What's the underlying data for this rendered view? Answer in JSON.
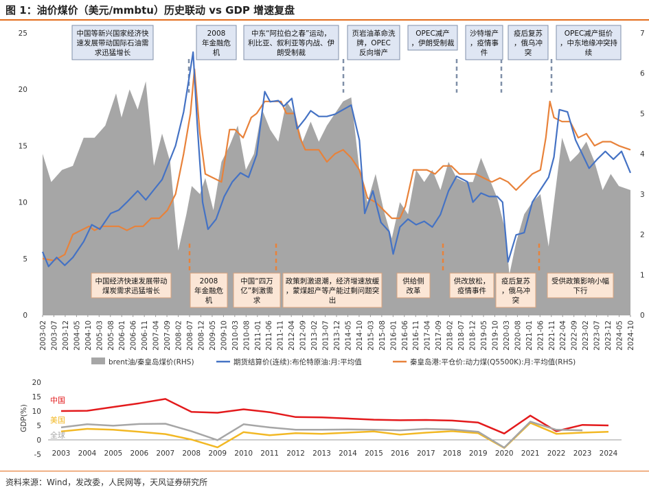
{
  "title": "图 1：油价煤价（美元/mmbtu）历史联动 vs GDP 增速复盘",
  "source": "资料来源：Wind，发改委，人民网等，天风证券研究所",
  "colors": {
    "area": "#a6a6a6",
    "oil": "#4472c4",
    "coal": "#e8823a",
    "china": "#e31a1c",
    "us": "#f2b824",
    "world": "#a6a6a6",
    "rule": "#e36c1b"
  },
  "chart_data": [
    {
      "type": "line",
      "left_axis": {
        "ylim": [
          0,
          25
        ],
        "ticks": [
          0,
          5,
          10,
          15,
          20,
          25
        ]
      },
      "right_axis": {
        "ylim": [
          0,
          7
        ],
        "ticks": [
          0,
          1,
          2,
          3,
          4,
          5,
          6,
          7
        ]
      },
      "x_range": [
        2003.08,
        2024.83
      ],
      "x_tick_labels": [
        "2003-02",
        "2003-07",
        "2003-12",
        "2004-05",
        "2004-10",
        "2005-03",
        "2005-08",
        "2006-01",
        "2006-06",
        "2006-11",
        "2007-04",
        "2007-09",
        "2008-02",
        "2008-07",
        "2008-12",
        "2009-05",
        "2009-10",
        "2010-03",
        "2010-08",
        "2011-01",
        "2011-06",
        "2011-11",
        "2012-04",
        "2012-09",
        "2013-02",
        "2013-07",
        "2013-12",
        "2014-05",
        "2014-10",
        "2015-03",
        "2015-08",
        "2016-01",
        "2016-06",
        "2016-11",
        "2017-04",
        "2017-09",
        "2018-02",
        "2018-07",
        "2018-12",
        "2019-05",
        "2019-10",
        "2020-03",
        "2020-08",
        "2021-01",
        "2021-06",
        "2021-11",
        "2022-04",
        "2022-09",
        "2023-02",
        "2023-07",
        "2023-12",
        "2024-05",
        "2024-10"
      ],
      "legend": [
        "brent油/秦皇岛煤价(RHS)",
        "期货结算价(连续):布伦特原油:月:平均值",
        "秦皇岛港:平仓价:动力煤(Q5500K):月:平均值(RHS)"
      ],
      "series": [
        {
          "name": "brent油/秦皇岛煤价(RHS)",
          "axis": "right",
          "style": "area",
          "x": [
            2003.08,
            2003.4,
            2003.8,
            2004.2,
            2004.6,
            2005.0,
            2005.4,
            2005.8,
            2006.0,
            2006.3,
            2006.6,
            2006.9,
            2007.2,
            2007.5,
            2007.8,
            2008.1,
            2008.4,
            2008.6,
            2008.9,
            2009.1,
            2009.4,
            2009.7,
            2010.0,
            2010.3,
            2010.6,
            2010.9,
            2011.2,
            2011.5,
            2011.8,
            2012.1,
            2012.4,
            2012.7,
            2013.0,
            2013.3,
            2013.6,
            2013.9,
            2014.2,
            2014.5,
            2014.8,
            2015.1,
            2015.4,
            2015.7,
            2016.0,
            2016.3,
            2016.6,
            2016.9,
            2017.2,
            2017.5,
            2017.8,
            2018.1,
            2018.4,
            2018.7,
            2019.0,
            2019.3,
            2019.6,
            2019.9,
            2020.2,
            2020.35,
            2020.6,
            2020.9,
            2021.2,
            2021.5,
            2021.8,
            2022.0,
            2022.3,
            2022.6,
            2022.9,
            2023.2,
            2023.5,
            2023.8,
            2024.1,
            2024.4,
            2024.83
          ],
          "y": [
            4.0,
            3.3,
            3.6,
            3.7,
            4.4,
            4.4,
            4.7,
            5.5,
            4.9,
            5.6,
            5.1,
            5.8,
            3.7,
            4.5,
            3.8,
            1.6,
            2.5,
            3.2,
            3.0,
            3.4,
            2.6,
            3.8,
            4.2,
            4.7,
            3.6,
            4.0,
            5.1,
            4.6,
            4.3,
            5.3,
            5.0,
            4.3,
            4.8,
            4.3,
            4.7,
            5.0,
            5.3,
            5.4,
            3.6,
            2.8,
            3.5,
            2.6,
            1.9,
            2.8,
            2.5,
            3.6,
            3.3,
            3.6,
            3.1,
            3.8,
            3.4,
            3.3,
            3.3,
            3.9,
            3.4,
            2.9,
            2.1,
            1.0,
            1.8,
            2.5,
            2.8,
            3.0,
            1.7,
            2.8,
            4.4,
            3.8,
            4.0,
            4.3,
            3.8,
            3.1,
            3.5,
            3.2,
            3.1
          ]
        },
        {
          "name": "期货结算价(连续):布伦特原油:月:平均值",
          "axis": "left",
          "style": "line",
          "x": [
            2003.08,
            2003.3,
            2003.6,
            2003.9,
            2004.2,
            2004.6,
            2004.9,
            2005.2,
            2005.6,
            2005.9,
            2006.2,
            2006.6,
            2006.9,
            2007.2,
            2007.5,
            2007.8,
            2008.0,
            2008.3,
            2008.5,
            2008.65,
            2008.8,
            2009.0,
            2009.2,
            2009.5,
            2009.8,
            2010.1,
            2010.4,
            2010.7,
            2011.0,
            2011.3,
            2011.5,
            2011.8,
            2012.0,
            2012.3,
            2012.5,
            2012.8,
            2013.0,
            2013.3,
            2013.6,
            2013.9,
            2014.2,
            2014.5,
            2014.8,
            2015.0,
            2015.3,
            2015.6,
            2015.9,
            2016.05,
            2016.3,
            2016.6,
            2016.9,
            2017.2,
            2017.5,
            2017.8,
            2018.1,
            2018.4,
            2018.8,
            2019.0,
            2019.3,
            2019.6,
            2019.9,
            2020.1,
            2020.3,
            2020.6,
            2020.9,
            2021.2,
            2021.5,
            2021.8,
            2022.0,
            2022.2,
            2022.5,
            2022.8,
            2023.0,
            2023.3,
            2023.6,
            2023.9,
            2024.2,
            2024.5,
            2024.83
          ],
          "y": [
            5.6,
            4.3,
            5.1,
            4.4,
            5.1,
            6.5,
            8.0,
            7.6,
            9.0,
            9.3,
            10.0,
            11.0,
            10.2,
            11.1,
            12.0,
            13.8,
            15.0,
            18.0,
            21.0,
            23.3,
            17.0,
            10.0,
            7.6,
            8.5,
            10.5,
            11.8,
            12.6,
            12.2,
            14.2,
            19.8,
            18.9,
            19.0,
            18.5,
            19.2,
            16.5,
            17.4,
            18.1,
            17.6,
            17.6,
            17.8,
            18.2,
            18.6,
            15.5,
            9.0,
            11.0,
            8.2,
            7.4,
            5.4,
            7.8,
            8.5,
            8.0,
            8.3,
            7.8,
            8.9,
            11.0,
            12.3,
            11.8,
            10.0,
            10.8,
            10.5,
            10.5,
            10.0,
            4.7,
            7.1,
            7.3,
            10.0,
            11.1,
            12.2,
            14.0,
            18.2,
            18.0,
            15.5,
            14.5,
            13.0,
            13.8,
            14.5,
            13.8,
            14.5,
            12.6
          ]
        },
        {
          "name": "秦皇岛港:平仓价:动力煤(Q5500K):月:平均值(RHS)",
          "axis": "right",
          "style": "line",
          "x": [
            2003.08,
            2003.5,
            2003.9,
            2004.2,
            2004.5,
            2004.8,
            2005.0,
            2005.3,
            2005.6,
            2005.9,
            2006.2,
            2006.5,
            2006.8,
            2007.1,
            2007.4,
            2007.7,
            2008.0,
            2008.3,
            2008.55,
            2008.7,
            2008.9,
            2009.1,
            2009.4,
            2009.7,
            2010.0,
            2010.2,
            2010.5,
            2010.8,
            2011.0,
            2011.3,
            2011.6,
            2011.9,
            2012.1,
            2012.4,
            2012.6,
            2012.8,
            2013.0,
            2013.3,
            2013.6,
            2013.9,
            2014.2,
            2014.5,
            2014.8,
            2015.1,
            2015.4,
            2015.7,
            2016.0,
            2016.3,
            2016.5,
            2016.8,
            2017.0,
            2017.3,
            2017.6,
            2017.9,
            2018.2,
            2018.5,
            2018.8,
            2019.1,
            2019.4,
            2019.7,
            2020.0,
            2020.3,
            2020.6,
            2020.9,
            2021.2,
            2021.5,
            2021.7,
            2021.85,
            2022.0,
            2022.3,
            2022.6,
            2022.9,
            2023.2,
            2023.5,
            2023.8,
            2024.1,
            2024.4,
            2024.83
          ],
          "y": [
            1.4,
            1.35,
            1.5,
            2.0,
            2.1,
            2.2,
            2.1,
            2.2,
            2.2,
            2.2,
            2.1,
            2.2,
            2.2,
            2.4,
            2.4,
            2.6,
            3.0,
            4.0,
            5.0,
            6.1,
            4.5,
            3.5,
            3.4,
            3.3,
            4.6,
            4.6,
            4.4,
            4.9,
            5.0,
            5.3,
            5.3,
            5.3,
            5.0,
            5.0,
            4.4,
            4.1,
            4.1,
            4.1,
            3.8,
            4.0,
            4.1,
            3.9,
            3.6,
            2.9,
            2.8,
            2.6,
            2.4,
            2.4,
            2.7,
            3.6,
            3.6,
            3.6,
            3.5,
            3.7,
            3.7,
            3.5,
            3.5,
            3.5,
            3.4,
            3.3,
            3.4,
            3.3,
            3.1,
            3.3,
            3.5,
            3.6,
            4.4,
            5.3,
            4.9,
            4.8,
            4.8,
            4.4,
            4.5,
            4.2,
            4.3,
            4.3,
            4.2,
            4.1
          ]
        }
      ],
      "annotations_top": [
        "中国等新兴国家经济快速发展带动国际石油需求迅猛增长",
        "2008年金融危机",
        "中东“阿拉伯之春”运动，利比亚、叙利亚等内战、伊朗受制裁",
        "页岩油革命洗牌，OPEC反向增产",
        "OPEC减产，伊朗受制裁",
        "沙特增产，疫情事件",
        "疫后复苏，俄乌冲突",
        "OPEC减产挺价，中东地缘冲突持续"
      ],
      "annotations_bottom": [
        "中国经济快速发展带动煤炭需求迅猛增长",
        "2008年金融危机",
        "中国“四万亿”刺激需求",
        "政策刺激退潮，经济增速放缓，蒙煤超产等产能过剩问题突出",
        "供给侧改革",
        "供改放松，疫情事件",
        "疫后复苏，俄乌冲突",
        "受供政策影响小幅下行"
      ]
    },
    {
      "type": "line",
      "ylabel": "GDP(%)",
      "ylim": [
        -5,
        20
      ],
      "y_ticks": [
        -5,
        0,
        5,
        10,
        15,
        20
      ],
      "categories": [
        "2003",
        "2004",
        "2005",
        "2006",
        "2007",
        "2008",
        "2009",
        "2010",
        "2011",
        "2012",
        "2013",
        "2014",
        "2015",
        "2016",
        "2017",
        "2018",
        "2019",
        "2020",
        "2021",
        "2022",
        "2023",
        "2024"
      ],
      "series": [
        {
          "name": "中国",
          "values": [
            10.0,
            10.1,
            11.4,
            12.7,
            14.2,
            9.7,
            9.4,
            10.6,
            9.6,
            7.9,
            7.8,
            7.4,
            7.0,
            6.8,
            6.9,
            6.7,
            6.0,
            2.2,
            8.4,
            3.0,
            5.2,
            5.0
          ]
        },
        {
          "name": "美国",
          "values": [
            2.9,
            3.8,
            3.5,
            2.8,
            2.0,
            0.1,
            -2.6,
            2.7,
            1.6,
            2.3,
            2.1,
            2.5,
            2.9,
            1.8,
            2.5,
            3.0,
            2.3,
            -2.8,
            5.9,
            2.1,
            2.5,
            2.8
          ]
        },
        {
          "name": "全球",
          "values": [
            4.3,
            5.4,
            4.9,
            5.5,
            5.6,
            3.0,
            -0.1,
            5.4,
            4.3,
            3.5,
            3.5,
            3.6,
            3.5,
            3.3,
            3.8,
            3.6,
            2.8,
            -2.7,
            6.3,
            3.5,
            3.3,
            null
          ]
        }
      ]
    }
  ]
}
